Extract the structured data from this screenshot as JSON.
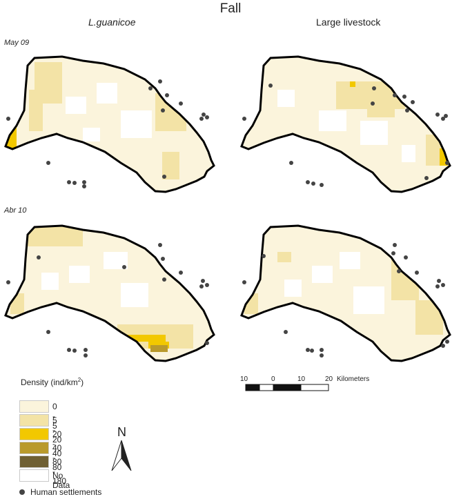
{
  "title": "Fall",
  "columns": [
    "L.guanicoe",
    "Large livestock"
  ],
  "rows": [
    "May 09",
    "Abr 10"
  ],
  "colors": {
    "d0_5": "#fbf4dc",
    "d5_20": "#f3e3a6",
    "d20_40": "#f2c800",
    "d40_80": "#b99a2c",
    "d80_180": "#6f5f32",
    "no_data": "#ffffff",
    "outline": "#000000",
    "settlement": "#444444"
  },
  "legend": {
    "title": "Density (ind/km",
    "title_sup": "2",
    "title_end": ")",
    "items": [
      {
        "label": "0 - 5",
        "color": "#fbf4dc"
      },
      {
        "label": "5 - 20",
        "color": "#f3e3a6"
      },
      {
        "label": "20 - 40",
        "color": "#f2c800"
      },
      {
        "label": "40 - 80",
        "color": "#b99a2c"
      },
      {
        "label": "80 - 180",
        "color": "#6f5f32"
      },
      {
        "label": "No Data",
        "color": "#ffffff"
      }
    ],
    "settlements_label": "Human settlements"
  },
  "scale_bar": {
    "labels": [
      "10",
      "0",
      "10",
      "20"
    ],
    "unit": "Kilometers"
  },
  "north_label": "N"
}
